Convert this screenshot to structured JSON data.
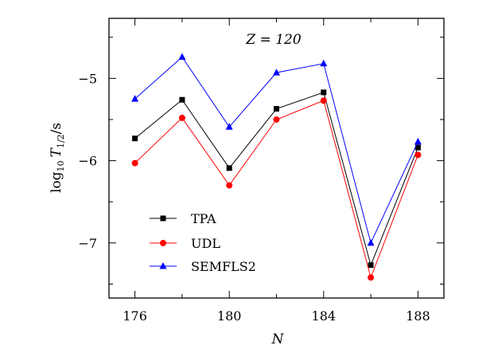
{
  "chart_data": {
    "type": "line",
    "annotation": "Z = 120",
    "xlabel": "N",
    "ylabel": "log10 T1/2/s",
    "x": [
      176,
      178,
      180,
      182,
      184,
      186,
      188
    ],
    "xlim": [
      174.9,
      189.1
    ],
    "ylim": [
      -7.67,
      -4.27
    ],
    "xticks": [
      176,
      180,
      184,
      188
    ],
    "yticks": [
      -5,
      -6,
      -7
    ],
    "tick_labels": {
      "x": [
        "176",
        "180",
        "184",
        "188"
      ],
      "y": [
        "−5",
        "−6",
        "−7"
      ]
    },
    "legend_position": "lower-left",
    "grid": false,
    "series": [
      {
        "name": "TPA",
        "color": "#000000",
        "marker": "square",
        "values": [
          -5.73,
          -5.26,
          -6.09,
          -5.37,
          -5.17,
          -7.27,
          -5.84
        ]
      },
      {
        "name": "UDL",
        "color": "#ff0000",
        "marker": "circle",
        "values": [
          -6.03,
          -5.48,
          -6.3,
          -5.5,
          -5.27,
          -7.42,
          -5.93
        ]
      },
      {
        "name": "SEMFLS2",
        "color": "#0000ff",
        "marker": "triangle",
        "values": [
          -5.25,
          -4.74,
          -5.59,
          -4.93,
          -4.82,
          -7.0,
          -5.77
        ]
      }
    ]
  }
}
